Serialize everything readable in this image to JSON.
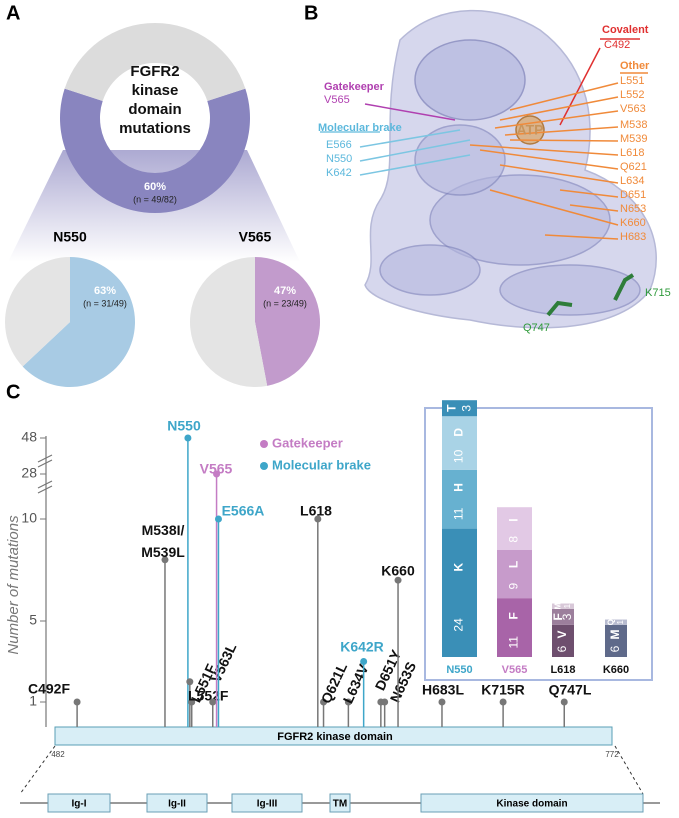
{
  "panel_labels": {
    "a": "A",
    "b": "B",
    "c": "C"
  },
  "chart_data": [
    {
      "type": "donut",
      "title": "FGFR2 kinase domain mutations",
      "values": [
        60,
        40
      ],
      "value_labels": [
        "60%",
        null
      ],
      "colors": [
        "#8985bf",
        "#dcdcdc"
      ],
      "annotation": "(n = 49/82)"
    },
    {
      "type": "pie",
      "title": "N550",
      "values": [
        63,
        37
      ],
      "value_labels": [
        "63%",
        null
      ],
      "colors": [
        "#a8cbe4",
        "#e4e4e4"
      ],
      "annotation": "(n = 31/49)"
    },
    {
      "type": "pie",
      "title": "V565",
      "values": [
        47,
        53
      ],
      "value_labels": [
        "47%",
        null
      ],
      "colors": [
        "#c29bcc",
        "#e4e4e4"
      ],
      "annotation": "(n = 23/49)"
    },
    {
      "type": "lollipop",
      "ylabel": "Number of mutations",
      "domain_label": "FGFR2 kinase domain",
      "xlim": [
        482,
        772
      ],
      "xticks": [
        482,
        772
      ],
      "yticks": [
        1,
        5,
        10,
        28,
        48
      ],
      "color": "#777777",
      "labels": [
        "C492F",
        "M538I/M539L",
        "N550",
        "L551F",
        "L552F",
        "V563L",
        "V565",
        "E566A",
        "L618",
        "Q621L",
        "L634V",
        "K642R",
        "D651Y",
        "N653S",
        "K660",
        "H683L",
        "K715R",
        "Q747L"
      ],
      "x": [
        492,
        538,
        550,
        551,
        552,
        563,
        565,
        566,
        618,
        621,
        634,
        642,
        651,
        653,
        660,
        683,
        715,
        747
      ],
      "values": [
        1,
        8,
        48,
        2,
        1,
        1,
        28,
        10,
        10,
        1,
        1,
        3,
        1,
        1,
        7,
        1,
        1,
        1
      ],
      "colors": [
        "#777777",
        "#777777",
        "#3ea6c9",
        "#777777",
        "#777777",
        "#777777",
        "#c47cc4",
        "#3ea6c9",
        "#777777",
        "#777777",
        "#777777",
        "#3ea6c9",
        "#777777",
        "#777777",
        "#777777",
        "#777777",
        "#777777",
        "#777777"
      ],
      "legend": [
        {
          "name": "Gatekeeper",
          "color": "#c47cc4"
        },
        {
          "name": "Molecular brake",
          "color": "#3ea6c9"
        }
      ]
    },
    {
      "type": "stacked_bar",
      "bars": [
        {
          "name": "N550",
          "label_color": "#3ea6c9",
          "segments": [
            {
              "name": "K",
              "value": 24,
              "color": "#3a8fb7"
            },
            {
              "name": "H",
              "value": 11,
              "color": "#67b1d0"
            },
            {
              "name": "D",
              "value": 10,
              "color": "#a9d3e6"
            },
            {
              "name": "T",
              "value": 3,
              "color": "#3a8fb7"
            }
          ]
        },
        {
          "name": "V565",
          "label_color": "#c47cc4",
          "segments": [
            {
              "name": "F",
              "value": 11,
              "color": "#a864a8"
            },
            {
              "name": "L",
              "value": 9,
              "color": "#c79bcb"
            },
            {
              "name": "I",
              "value": 8,
              "color": "#e2c9e5"
            }
          ]
        },
        {
          "name": "L618",
          "label_color": "#111111",
          "segments": [
            {
              "name": "V",
              "value": 6,
              "color": "#6e4f6e"
            },
            {
              "name": "F",
              "value": 3,
              "color": "#9c7f9c"
            },
            {
              "name": "M",
              "value": 1,
              "color": "#d8c8d8"
            }
          ]
        },
        {
          "name": "K660",
          "label_color": "#111111",
          "segments": [
            {
              "name": "M",
              "value": 6,
              "color": "#5f6a8a"
            },
            {
              "name": "Q",
              "value": 1,
              "color": "#b8bcd0"
            }
          ]
        }
      ]
    }
  ],
  "structure": {
    "covalent": "Covalent",
    "covalent_residues": [
      "C492"
    ],
    "other": "Other",
    "other_residues": [
      "L551",
      "L552",
      "V563",
      "M538",
      "M539",
      "L618",
      "Q621",
      "L634",
      "D651",
      "N653",
      "K660",
      "H683"
    ],
    "gatekeeper": "Gatekeeper",
    "gatekeeper_residues": [
      "V565"
    ],
    "brake": "Molecular brake",
    "brake_residues": [
      "E566",
      "N550",
      "K642"
    ],
    "ligand": "ATP",
    "surface_residues": [
      "K715",
      "Q747"
    ]
  },
  "domain_diagram": {
    "labels": [
      "Ig-I",
      "Ig-II",
      "Ig-III",
      "TM",
      "Kinase domain"
    ]
  }
}
